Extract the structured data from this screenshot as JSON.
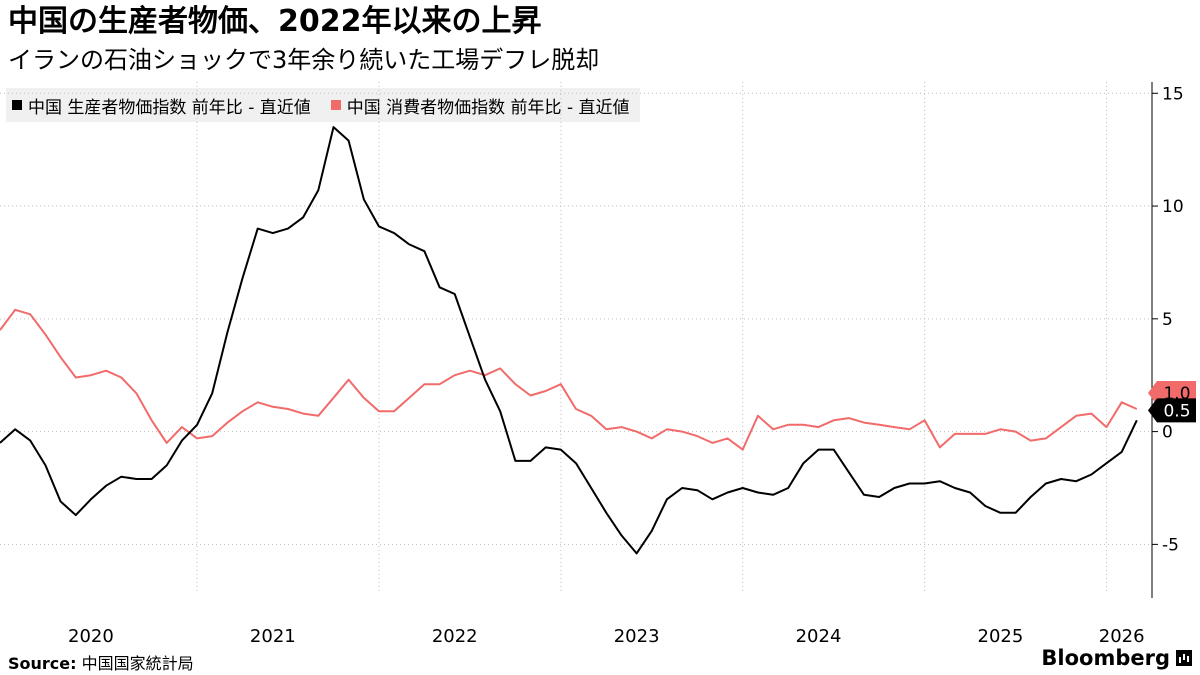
{
  "header": {
    "title": "中国の生産者物価、2022年以来の上昇",
    "subtitle": "イランの石油ショックで3年余り続いた工場デフレ脱却"
  },
  "footer": {
    "source_label": "Source:",
    "source_text": "中国国家統計局",
    "brand": "Bloomberg"
  },
  "colors": {
    "ppi": "#000000",
    "cpi": "#f26b6b"
  },
  "chart_data": {
    "type": "line",
    "title": "中国の生産者物価、2022年以来の上昇",
    "subtitle": "イランの石油ショックで3年余り続いた工場デフレ脱却",
    "xlabel": "",
    "ylabel": "",
    "ylim": [
      -7.2,
      15.5
    ],
    "yticks": [
      15,
      10,
      5,
      0,
      -5
    ],
    "ytick_labels": [
      "15",
      "10",
      "5",
      "0",
      "-5"
    ],
    "xlim": [
      "2019-12",
      "2026-04"
    ],
    "x_tick_labels": [
      {
        "label": "2020",
        "date": "2020-06"
      },
      {
        "label": "2021",
        "date": "2021-06"
      },
      {
        "label": "2022",
        "date": "2022-06"
      },
      {
        "label": "2023",
        "date": "2023-06"
      },
      {
        "label": "2024",
        "date": "2024-06"
      },
      {
        "label": "2025",
        "date": "2025-06"
      },
      {
        "label": "2026",
        "date": "2026-02"
      }
    ],
    "grid": true,
    "legend_position": "top-left",
    "series": [
      {
        "name": "中国 生産者物価指数 前年比 - 直近値",
        "color": "#000000",
        "end_label": "0.5",
        "points": [
          [
            "2019-12",
            -0.5
          ],
          [
            "2020-01",
            0.1
          ],
          [
            "2020-02",
            -0.4
          ],
          [
            "2020-03",
            -1.5
          ],
          [
            "2020-04",
            -3.1
          ],
          [
            "2020-05",
            -3.7
          ],
          [
            "2020-06",
            -3.0
          ],
          [
            "2020-07",
            -2.4
          ],
          [
            "2020-08",
            -2.0
          ],
          [
            "2020-09",
            -2.1
          ],
          [
            "2020-10",
            -2.1
          ],
          [
            "2020-11",
            -1.5
          ],
          [
            "2020-12",
            -0.4
          ],
          [
            "2021-01",
            0.3
          ],
          [
            "2021-02",
            1.7
          ],
          [
            "2021-03",
            4.4
          ],
          [
            "2021-04",
            6.8
          ],
          [
            "2021-05",
            9.0
          ],
          [
            "2021-06",
            8.8
          ],
          [
            "2021-07",
            9.0
          ],
          [
            "2021-08",
            9.5
          ],
          [
            "2021-09",
            10.7
          ],
          [
            "2021-10",
            13.5
          ],
          [
            "2021-11",
            12.9
          ],
          [
            "2021-12",
            10.3
          ],
          [
            "2022-01",
            9.1
          ],
          [
            "2022-02",
            8.8
          ],
          [
            "2022-03",
            8.3
          ],
          [
            "2022-04",
            8.0
          ],
          [
            "2022-05",
            6.4
          ],
          [
            "2022-06",
            6.1
          ],
          [
            "2022-07",
            4.2
          ],
          [
            "2022-08",
            2.3
          ],
          [
            "2022-09",
            0.9
          ],
          [
            "2022-10",
            -1.3
          ],
          [
            "2022-11",
            -1.3
          ],
          [
            "2022-12",
            -0.7
          ],
          [
            "2023-01",
            -0.8
          ],
          [
            "2023-02",
            -1.4
          ],
          [
            "2023-03",
            -2.5
          ],
          [
            "2023-04",
            -3.6
          ],
          [
            "2023-05",
            -4.6
          ],
          [
            "2023-06",
            -5.4
          ],
          [
            "2023-07",
            -4.4
          ],
          [
            "2023-08",
            -3.0
          ],
          [
            "2023-09",
            -2.5
          ],
          [
            "2023-10",
            -2.6
          ],
          [
            "2023-11",
            -3.0
          ],
          [
            "2023-12",
            -2.7
          ],
          [
            "2024-01",
            -2.5
          ],
          [
            "2024-02",
            -2.7
          ],
          [
            "2024-03",
            -2.8
          ],
          [
            "2024-04",
            -2.5
          ],
          [
            "2024-05",
            -1.4
          ],
          [
            "2024-06",
            -0.8
          ],
          [
            "2024-07",
            -0.8
          ],
          [
            "2024-08",
            -1.8
          ],
          [
            "2024-09",
            -2.8
          ],
          [
            "2024-10",
            -2.9
          ],
          [
            "2024-11",
            -2.5
          ],
          [
            "2024-12",
            -2.3
          ],
          [
            "2025-01",
            -2.3
          ],
          [
            "2025-02",
            -2.2
          ],
          [
            "2025-03",
            -2.5
          ],
          [
            "2025-04",
            -2.7
          ],
          [
            "2025-05",
            -3.3
          ],
          [
            "2025-06",
            -3.6
          ],
          [
            "2025-07",
            -3.6
          ],
          [
            "2025-08",
            -2.9
          ],
          [
            "2025-09",
            -2.3
          ],
          [
            "2025-10",
            -2.1
          ],
          [
            "2025-11",
            -2.2
          ],
          [
            "2025-12",
            -1.9
          ],
          [
            "2026-01",
            -1.4
          ],
          [
            "2026-02",
            -0.9
          ],
          [
            "2026-03",
            0.5
          ]
        ]
      },
      {
        "name": "中国 消費者物価指数 前年比 - 直近値",
        "color": "#f26b6b",
        "end_label": "1.0",
        "points": [
          [
            "2019-12",
            4.5
          ],
          [
            "2020-01",
            5.4
          ],
          [
            "2020-02",
            5.2
          ],
          [
            "2020-03",
            4.3
          ],
          [
            "2020-04",
            3.3
          ],
          [
            "2020-05",
            2.4
          ],
          [
            "2020-06",
            2.5
          ],
          [
            "2020-07",
            2.7
          ],
          [
            "2020-08",
            2.4
          ],
          [
            "2020-09",
            1.7
          ],
          [
            "2020-10",
            0.5
          ],
          [
            "2020-11",
            -0.5
          ],
          [
            "2020-12",
            0.2
          ],
          [
            "2021-01",
            -0.3
          ],
          [
            "2021-02",
            -0.2
          ],
          [
            "2021-03",
            0.4
          ],
          [
            "2021-04",
            0.9
          ],
          [
            "2021-05",
            1.3
          ],
          [
            "2021-06",
            1.1
          ],
          [
            "2021-07",
            1.0
          ],
          [
            "2021-08",
            0.8
          ],
          [
            "2021-09",
            0.7
          ],
          [
            "2021-10",
            1.5
          ],
          [
            "2021-11",
            2.3
          ],
          [
            "2021-12",
            1.5
          ],
          [
            "2022-01",
            0.9
          ],
          [
            "2022-02",
            0.9
          ],
          [
            "2022-03",
            1.5
          ],
          [
            "2022-04",
            2.1
          ],
          [
            "2022-05",
            2.1
          ],
          [
            "2022-06",
            2.5
          ],
          [
            "2022-07",
            2.7
          ],
          [
            "2022-08",
            2.5
          ],
          [
            "2022-09",
            2.8
          ],
          [
            "2022-10",
            2.1
          ],
          [
            "2022-11",
            1.6
          ],
          [
            "2022-12",
            1.8
          ],
          [
            "2023-01",
            2.1
          ],
          [
            "2023-02",
            1.0
          ],
          [
            "2023-03",
            0.7
          ],
          [
            "2023-04",
            0.1
          ],
          [
            "2023-05",
            0.2
          ],
          [
            "2023-06",
            0.0
          ],
          [
            "2023-07",
            -0.3
          ],
          [
            "2023-08",
            0.1
          ],
          [
            "2023-09",
            0.0
          ],
          [
            "2023-10",
            -0.2
          ],
          [
            "2023-11",
            -0.5
          ],
          [
            "2023-12",
            -0.3
          ],
          [
            "2024-01",
            -0.8
          ],
          [
            "2024-02",
            0.7
          ],
          [
            "2024-03",
            0.1
          ],
          [
            "2024-04",
            0.3
          ],
          [
            "2024-05",
            0.3
          ],
          [
            "2024-06",
            0.2
          ],
          [
            "2024-07",
            0.5
          ],
          [
            "2024-08",
            0.6
          ],
          [
            "2024-09",
            0.4
          ],
          [
            "2024-10",
            0.3
          ],
          [
            "2024-11",
            0.2
          ],
          [
            "2024-12",
            0.1
          ],
          [
            "2025-01",
            0.5
          ],
          [
            "2025-02",
            -0.7
          ],
          [
            "2025-03",
            -0.1
          ],
          [
            "2025-04",
            -0.1
          ],
          [
            "2025-05",
            -0.1
          ],
          [
            "2025-06",
            0.1
          ],
          [
            "2025-07",
            0.0
          ],
          [
            "2025-08",
            -0.4
          ],
          [
            "2025-09",
            -0.3
          ],
          [
            "2025-10",
            0.2
          ],
          [
            "2025-11",
            0.7
          ],
          [
            "2025-12",
            0.8
          ],
          [
            "2026-01",
            0.2
          ],
          [
            "2026-02",
            1.3
          ],
          [
            "2026-03",
            1.0
          ]
        ]
      }
    ]
  }
}
